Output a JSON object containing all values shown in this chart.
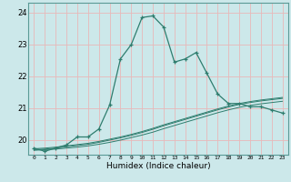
{
  "xlabel": "Humidex (Indice chaleur)",
  "bg_color": "#cce8ea",
  "grid_color_major": "#e8b8b8",
  "grid_color_minor": "#e8d0d0",
  "line_color": "#2e7d6e",
  "xlim": [
    -0.5,
    23.5
  ],
  "ylim": [
    19.55,
    24.3
  ],
  "yticks": [
    20,
    21,
    22,
    23,
    24
  ],
  "xticks": [
    0,
    1,
    2,
    3,
    4,
    5,
    6,
    7,
    8,
    9,
    10,
    11,
    12,
    13,
    14,
    15,
    16,
    17,
    18,
    19,
    20,
    21,
    22,
    23
  ],
  "main_x": [
    0,
    1,
    2,
    3,
    4,
    5,
    6,
    7,
    8,
    9,
    10,
    11,
    12,
    13,
    14,
    15,
    16,
    17,
    18,
    19,
    20,
    21,
    22,
    23
  ],
  "main_y": [
    19.75,
    19.65,
    19.75,
    19.85,
    20.1,
    20.1,
    20.35,
    21.1,
    22.55,
    23.0,
    23.85,
    23.9,
    23.55,
    22.45,
    22.55,
    22.75,
    22.1,
    21.45,
    21.15,
    21.15,
    21.05,
    21.05,
    20.95,
    20.85
  ],
  "line1_x": [
    0,
    1,
    2,
    3,
    4,
    5,
    6,
    7,
    8,
    9,
    10,
    11,
    12,
    13,
    14,
    15,
    16,
    17,
    18,
    19,
    20,
    21,
    22,
    23
  ],
  "line1_y": [
    19.68,
    19.7,
    19.72,
    19.75,
    19.78,
    19.82,
    19.87,
    19.93,
    20.0,
    20.08,
    20.16,
    20.25,
    20.36,
    20.46,
    20.56,
    20.66,
    20.76,
    20.86,
    20.95,
    21.03,
    21.09,
    21.14,
    21.18,
    21.22
  ],
  "line2_x": [
    0,
    1,
    2,
    3,
    4,
    5,
    6,
    7,
    8,
    9,
    10,
    11,
    12,
    13,
    14,
    15,
    16,
    17,
    18,
    19,
    20,
    21,
    22,
    23
  ],
  "line2_y": [
    19.7,
    19.72,
    19.75,
    19.79,
    19.83,
    19.87,
    19.93,
    20.0,
    20.07,
    20.15,
    20.24,
    20.34,
    20.45,
    20.55,
    20.65,
    20.75,
    20.85,
    20.95,
    21.04,
    21.12,
    21.18,
    21.23,
    21.27,
    21.31
  ],
  "line3_x": [
    0,
    1,
    2,
    3,
    4,
    5,
    6,
    7,
    8,
    9,
    10,
    11,
    12,
    13,
    14,
    15,
    16,
    17,
    18,
    19,
    20,
    21,
    22,
    23
  ],
  "line3_y": [
    19.73,
    19.75,
    19.78,
    19.82,
    19.86,
    19.9,
    19.96,
    20.03,
    20.1,
    20.18,
    20.27,
    20.37,
    20.48,
    20.58,
    20.68,
    20.78,
    20.88,
    20.98,
    21.07,
    21.15,
    21.21,
    21.26,
    21.3,
    21.34
  ]
}
